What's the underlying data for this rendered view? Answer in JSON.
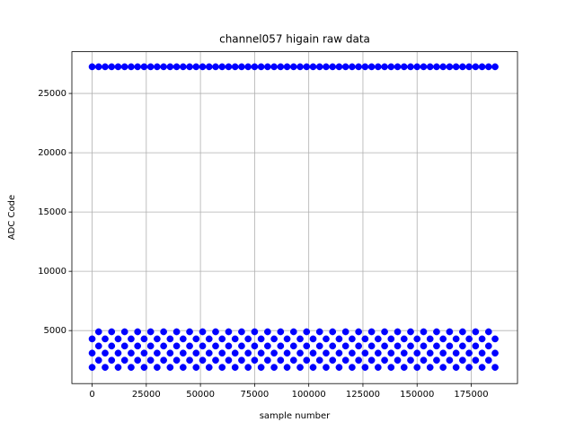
{
  "chart_data": {
    "type": "scatter",
    "title": "channel057 higain raw data",
    "xlabel": "sample number",
    "ylabel": "ADC Code",
    "color": "blue",
    "grid": true,
    "xlim": [
      -9350,
      196350
    ],
    "xticks": [
      0,
      25000,
      50000,
      75000,
      100000,
      125000,
      150000,
      175000
    ],
    "ylim": [
      530,
      28520
    ],
    "yticks": [
      5000,
      10000,
      15000,
      20000,
      25000
    ],
    "x": [
      0,
      6000,
      12000,
      18000,
      24000,
      30000,
      36000,
      42000,
      48000,
      54000,
      60000,
      66000,
      72000,
      78000,
      84000,
      90000,
      96000,
      102000,
      108000,
      114000,
      120000,
      126000,
      132000,
      138000,
      144000,
      150000,
      156000,
      162000,
      168000,
      174000,
      180000,
      186000,
      3000,
      9000,
      15000,
      21000,
      27000,
      33000,
      39000,
      45000,
      51000,
      57000,
      63000,
      69000,
      75000,
      81000,
      87000,
      93000,
      99000,
      105000,
      111000,
      117000,
      123000,
      129000,
      135000,
      141000,
      147000,
      153000,
      159000,
      165000,
      171000,
      177000,
      183000,
      0,
      6000,
      12000,
      18000,
      24000,
      30000,
      36000,
      42000,
      48000,
      54000,
      60000,
      66000,
      72000,
      78000,
      84000,
      90000,
      96000,
      102000,
      108000,
      114000,
      120000,
      126000,
      132000,
      138000,
      144000,
      150000,
      156000,
      162000,
      168000,
      174000,
      180000,
      186000,
      3000,
      9000,
      15000,
      21000,
      27000,
      33000,
      39000,
      45000,
      51000,
      57000,
      63000,
      69000,
      75000,
      81000,
      87000,
      93000,
      99000,
      105000,
      111000,
      117000,
      123000,
      129000,
      135000,
      141000,
      147000,
      153000,
      159000,
      165000,
      171000,
      177000,
      183000,
      0,
      6000,
      12000,
      18000,
      24000,
      30000,
      36000,
      42000,
      48000,
      54000,
      60000,
      66000,
      72000,
      78000,
      84000,
      90000,
      96000,
      102000,
      108000,
      114000,
      120000,
      126000,
      132000,
      138000,
      144000,
      150000,
      156000,
      162000,
      168000,
      174000,
      180000,
      186000,
      3000,
      9000,
      15000,
      21000,
      27000,
      33000,
      39000,
      45000,
      51000,
      57000,
      63000,
      69000,
      75000,
      81000,
      87000,
      93000,
      99000,
      105000,
      111000,
      117000,
      123000,
      129000,
      135000,
      141000,
      147000,
      153000,
      159000,
      165000,
      171000,
      177000,
      183000,
      0,
      6000,
      12000,
      18000,
      24000,
      30000,
      36000,
      42000,
      48000,
      54000,
      60000,
      66000,
      72000,
      78000,
      84000,
      90000,
      96000,
      102000,
      108000,
      114000,
      120000,
      126000,
      132000,
      138000,
      144000,
      150000,
      156000,
      162000,
      168000,
      174000,
      180000,
      186000,
      3000,
      9000,
      15000,
      21000,
      27000,
      33000,
      39000,
      45000,
      51000,
      57000,
      63000,
      69000,
      75000,
      81000,
      87000,
      93000,
      99000,
      105000,
      111000,
      117000,
      123000,
      129000,
      135000,
      141000,
      147000,
      153000,
      159000,
      165000,
      171000,
      177000,
      183000
    ],
    "values": [
      27250,
      27250,
      27250,
      27250,
      27250,
      27250,
      27250,
      27250,
      27250,
      27250,
      27250,
      27250,
      27250,
      27250,
      27250,
      27250,
      27250,
      27250,
      27250,
      27250,
      27250,
      27250,
      27250,
      27250,
      27250,
      27250,
      27250,
      27250,
      27250,
      27250,
      27250,
      27250,
      27250,
      27250,
      27250,
      27250,
      27250,
      27250,
      27250,
      27250,
      27250,
      27250,
      27250,
      27250,
      27250,
      27250,
      27250,
      27250,
      27250,
      27250,
      27250,
      27250,
      27250,
      27250,
      27250,
      27250,
      27250,
      27250,
      27250,
      27250,
      27250,
      27250,
      27250,
      1900,
      1900,
      1900,
      1900,
      1900,
      1900,
      1900,
      1900,
      1900,
      1900,
      1900,
      1900,
      1900,
      1900,
      1900,
      1900,
      1900,
      1900,
      1900,
      1900,
      1900,
      1900,
      1900,
      1900,
      1900,
      1900,
      1900,
      1900,
      1900,
      1900,
      1900,
      1900,
      2500,
      2500,
      2500,
      2500,
      2500,
      2500,
      2500,
      2500,
      2500,
      2500,
      2500,
      2500,
      2500,
      2500,
      2500,
      2500,
      2500,
      2500,
      2500,
      2500,
      2500,
      2500,
      2500,
      2500,
      2500,
      2500,
      2500,
      2500,
      2500,
      2500,
      2500,
      3100,
      3100,
      3100,
      3100,
      3100,
      3100,
      3100,
      3100,
      3100,
      3100,
      3100,
      3100,
      3100,
      3100,
      3100,
      3100,
      3100,
      3100,
      3100,
      3100,
      3100,
      3100,
      3100,
      3100,
      3100,
      3100,
      3100,
      3100,
      3100,
      3100,
      3100,
      3100,
      3700,
      3700,
      3700,
      3700,
      3700,
      3700,
      3700,
      3700,
      3700,
      3700,
      3700,
      3700,
      3700,
      3700,
      3700,
      3700,
      3700,
      3700,
      3700,
      3700,
      3700,
      3700,
      3700,
      3700,
      3700,
      3700,
      3700,
      3700,
      3700,
      3700,
      3700,
      4300,
      4300,
      4300,
      4300,
      4300,
      4300,
      4300,
      4300,
      4300,
      4300,
      4300,
      4300,
      4300,
      4300,
      4300,
      4300,
      4300,
      4300,
      4300,
      4300,
      4300,
      4300,
      4300,
      4300,
      4300,
      4300,
      4300,
      4300,
      4300,
      4300,
      4300,
      4300,
      4900,
      4900,
      4900,
      4900,
      4900,
      4900,
      4900,
      4900,
      4900,
      4900,
      4900,
      4900,
      4900,
      4900,
      4900,
      4900,
      4900,
      4900,
      4900,
      4900,
      4900,
      4900,
      4900,
      4900,
      4900,
      4900,
      4900,
      4900,
      4900,
      4900,
      4900
    ]
  }
}
